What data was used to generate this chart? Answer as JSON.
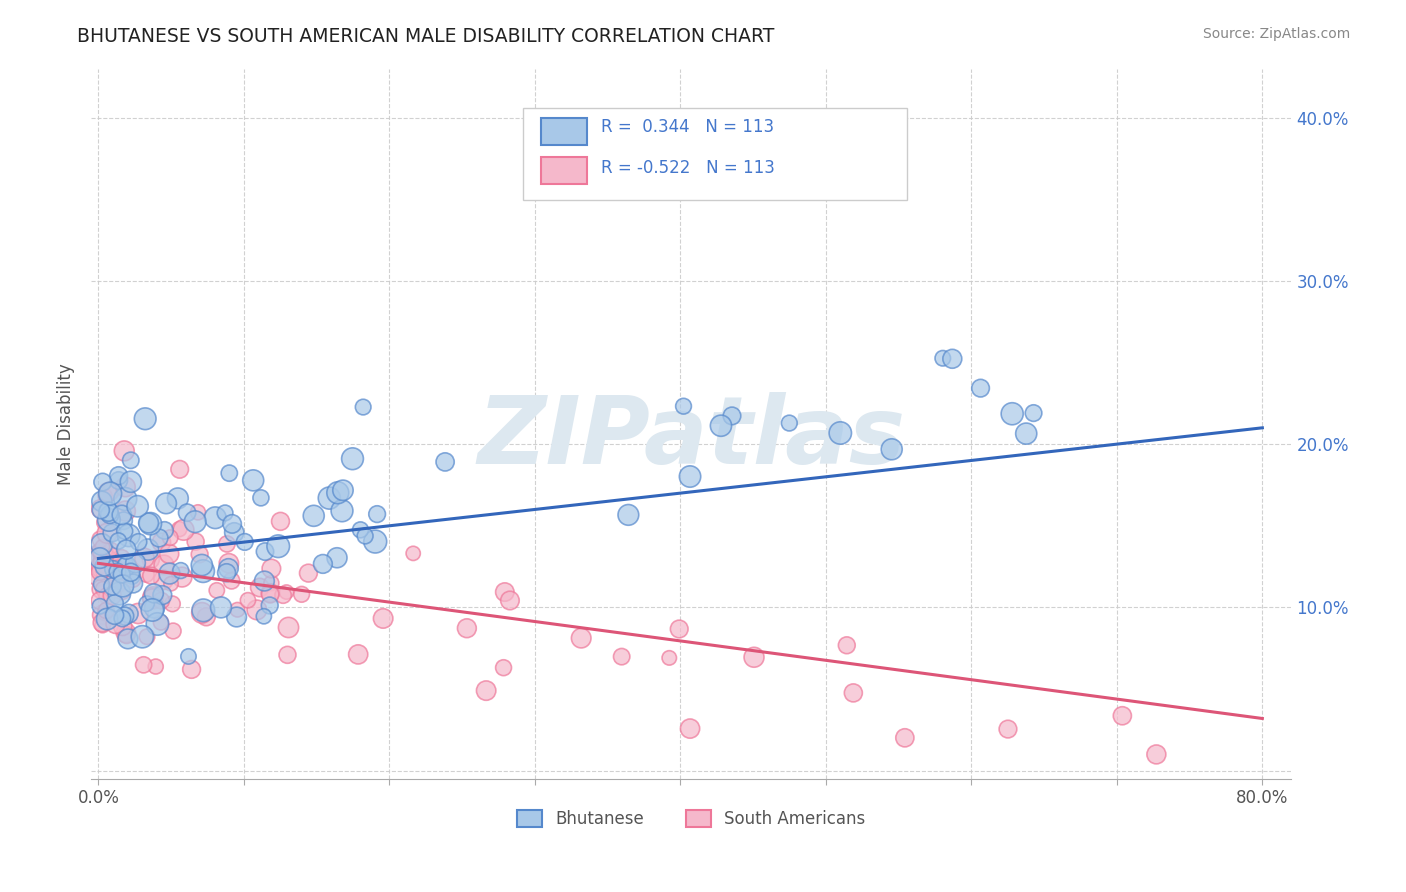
{
  "title": "BHUTANESE VS SOUTH AMERICAN MALE DISABILITY CORRELATION CHART",
  "source": "Source: ZipAtlas.com",
  "ylabel": "Male Disability",
  "xlim": [
    -0.005,
    0.82
  ],
  "ylim": [
    -0.005,
    0.43
  ],
  "blue_R": 0.344,
  "blue_N": 113,
  "pink_R": -0.522,
  "pink_N": 113,
  "blue_color": "#a8c8e8",
  "pink_color": "#f5b8cb",
  "blue_edge_color": "#5588cc",
  "pink_edge_color": "#ee7799",
  "blue_line_color": "#3366bb",
  "pink_line_color": "#dd5577",
  "blue_label": "Bhutanese",
  "pink_label": "South Americans",
  "watermark": "ZIPatlas",
  "watermark_color": "#dde8f0",
  "title_color": "#222222",
  "source_color": "#888888",
  "grid_color": "#cccccc",
  "legend_text_color": "#4477cc",
  "blue_trend_x0": 0.0,
  "blue_trend_y0": 0.13,
  "blue_trend_x1": 0.8,
  "blue_trend_y1": 0.21,
  "pink_trend_x0": 0.0,
  "pink_trend_y0": 0.127,
  "pink_trend_x1": 0.8,
  "pink_trend_y1": 0.032
}
